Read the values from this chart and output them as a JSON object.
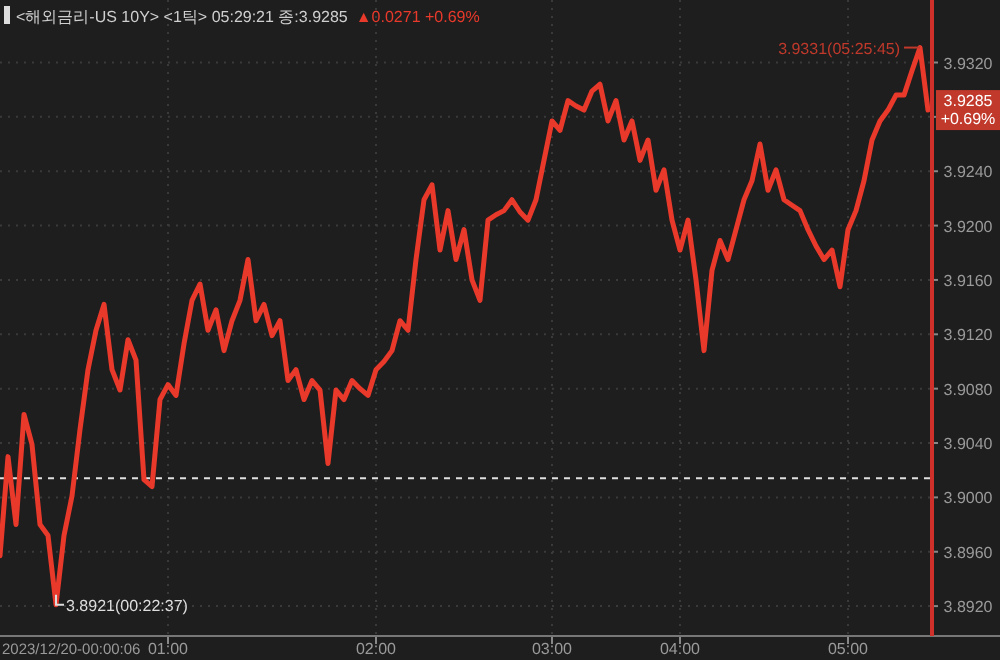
{
  "chart_data": {
    "type": "line",
    "title": "<해외금리-US 10Y> <1틱> 05:29:21 종:3.9285",
    "subtitle": "▲0.0271 +0.69%",
    "categories": [
      null,
      null,
      null,
      null,
      null,
      null,
      null,
      null,
      null,
      null,
      null,
      null,
      null,
      null,
      null,
      null,
      null,
      null,
      null,
      null,
      null,
      "01:00",
      null,
      null,
      null,
      null,
      null,
      null,
      null,
      null,
      null,
      null,
      null,
      null,
      null,
      null,
      null,
      null,
      null,
      null,
      null,
      null,
      null,
      null,
      null,
      null,
      null,
      "02:00",
      null,
      null,
      null,
      null,
      null,
      null,
      null,
      null,
      null,
      null,
      null,
      null,
      null,
      null,
      null,
      null,
      null,
      null,
      null,
      null,
      null,
      "03:00",
      null,
      null,
      null,
      null,
      null,
      null,
      null,
      null,
      null,
      null,
      null,
      null,
      null,
      null,
      null,
      "04:00",
      null,
      null,
      null,
      null,
      null,
      null,
      null,
      null,
      null,
      null,
      null,
      null,
      null,
      null,
      null,
      null,
      null,
      null,
      null,
      null,
      "05:00",
      null,
      null,
      null,
      null,
      null,
      null,
      null,
      null,
      null,
      null
    ],
    "series": [
      {
        "color": "#e8392b",
        "values": [
          3.8957,
          3.903,
          3.898,
          3.9061,
          3.9039,
          3.898,
          3.8972,
          3.8921,
          3.8972,
          3.9001,
          3.905,
          3.9094,
          3.9123,
          3.9142,
          3.9094,
          3.9079,
          3.9116,
          3.9101,
          3.9013,
          3.9008,
          3.9072,
          3.9083,
          3.9075,
          3.9113,
          3.9145,
          3.9157,
          3.9123,
          3.9138,
          3.9108,
          3.913,
          3.9145,
          3.9175,
          3.913,
          3.9142,
          3.9119,
          3.913,
          3.9086,
          3.9094,
          3.9072,
          3.9086,
          3.9079,
          3.9025,
          3.9079,
          3.9072,
          3.9086,
          3.908,
          3.9075,
          3.9094,
          3.91,
          3.9108,
          3.913,
          3.9123,
          3.9175,
          3.9219,
          3.923,
          3.9182,
          3.9211,
          3.9175,
          3.9197,
          3.916,
          3.9145,
          3.9204,
          3.9208,
          3.9211,
          3.9219,
          3.921,
          3.9204,
          3.9219,
          3.9248,
          3.9277,
          3.927,
          3.9292,
          3.9288,
          3.9285,
          3.9299,
          3.9304,
          3.9277,
          3.9292,
          3.9263,
          3.9277,
          3.9248,
          3.9263,
          3.9226,
          3.9241,
          3.9204,
          3.9182,
          3.9204,
          3.916,
          3.9108,
          3.9167,
          3.9189,
          3.9175,
          3.9197,
          3.9219,
          3.9233,
          3.926,
          3.9226,
          3.9241,
          3.9219,
          3.9215,
          3.9211,
          3.9197,
          3.9185,
          3.9175,
          3.9182,
          3.9155,
          3.9197,
          3.9211,
          3.9233,
          3.9263,
          3.9277,
          3.9285,
          3.9296,
          3.9296,
          3.9314,
          3.9331,
          3.9285
        ]
      }
    ],
    "ylim": [
      3.8898,
      3.9366
    ],
    "yticks": [
      {
        "value": 3.892,
        "label": "3.8920"
      },
      {
        "value": 3.896,
        "label": "3.8960"
      },
      {
        "value": 3.9,
        "label": "3.9000"
      },
      {
        "value": 3.904,
        "label": "3.9040"
      },
      {
        "value": 3.908,
        "label": "3.9080"
      },
      {
        "value": 3.912,
        "label": "3.9120"
      },
      {
        "value": 3.916,
        "label": "3.9160"
      },
      {
        "value": 3.92,
        "label": "3.9200"
      },
      {
        "value": 3.924,
        "label": "3.9240"
      },
      {
        "value": 3.928,
        "label": null
      },
      {
        "value": 3.932,
        "label": "3.9320"
      }
    ],
    "grid": true,
    "line_style": "solid",
    "ref_lines": [
      {
        "axis": "y",
        "value": 3.9014,
        "color": "#e0e0e0",
        "line_style": "dashed"
      }
    ],
    "annotations": [
      "3.9331(05:25:45)",
      "3.8921(00:22:37)",
      {
        "text": "3.9285 +0.69%",
        "y": 3.9285
      },
      "2023/12/20-00:00:06"
    ]
  }
}
